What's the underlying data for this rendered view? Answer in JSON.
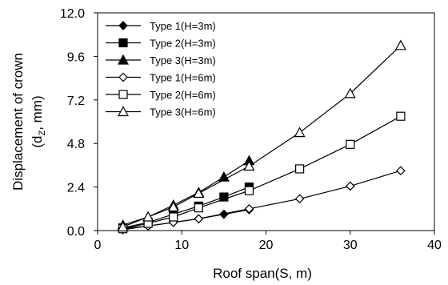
{
  "chart_data": {
    "type": "line",
    "xlabel": "Roof span(S,  m)",
    "ylabel_main": "Displacement of crown",
    "ylabel_sub_prefix": "(d",
    "ylabel_sub_subscript": "Z",
    "ylabel_sub_suffix": ", mm)",
    "xlim": [
      0,
      40
    ],
    "ylim": [
      0.0,
      12.0
    ],
    "x_ticks": [
      "0",
      "10",
      "20",
      "30",
      "40"
    ],
    "y_ticks": [
      "0.0",
      "2.4",
      "4.8",
      "7.2",
      "9.6",
      "12.0"
    ],
    "x_tick_values": [
      0,
      10,
      20,
      30,
      40
    ],
    "y_tick_values": [
      0.0,
      2.4,
      4.8,
      7.2,
      9.6,
      12.0
    ],
    "grid": false,
    "legend_position": "top-left",
    "series": [
      {
        "name": "Type 1(H=3m)",
        "marker": "diamond",
        "filled": true,
        "x": [
          3,
          6,
          9,
          12,
          15,
          18
        ],
        "y": [
          0.1,
          0.25,
          0.45,
          0.65,
          0.9,
          1.15
        ]
      },
      {
        "name": "Type 2(H=3m)",
        "marker": "square",
        "filled": true,
        "x": [
          3,
          6,
          9,
          12,
          15,
          18
        ],
        "y": [
          0.15,
          0.45,
          0.9,
          1.35,
          1.85,
          2.4
        ]
      },
      {
        "name": "Type 3(H=3m)",
        "marker": "triangle",
        "filled": true,
        "x": [
          3,
          6,
          9,
          12,
          15,
          18
        ],
        "y": [
          0.3,
          0.75,
          1.4,
          2.1,
          2.95,
          3.85
        ]
      },
      {
        "name": "Type 1(H=6m)",
        "marker": "diamond",
        "filled": false,
        "x": [
          3,
          6,
          9,
          12,
          18,
          24,
          30,
          36
        ],
        "y": [
          0.05,
          0.25,
          0.45,
          0.65,
          1.2,
          1.75,
          2.45,
          3.3
        ]
      },
      {
        "name": "Type 2(H=6m)",
        "marker": "square",
        "filled": false,
        "x": [
          3,
          6,
          9,
          12,
          18,
          24,
          30,
          36
        ],
        "y": [
          0.1,
          0.4,
          0.75,
          1.25,
          2.2,
          3.4,
          4.75,
          6.3
        ]
      },
      {
        "name": "Type 3(H=6m)",
        "marker": "triangle",
        "filled": false,
        "x": [
          3,
          6,
          9,
          12,
          18,
          24,
          30,
          36
        ],
        "y": [
          0.2,
          0.75,
          1.3,
          2.05,
          3.55,
          5.4,
          7.55,
          10.2
        ]
      }
    ]
  }
}
